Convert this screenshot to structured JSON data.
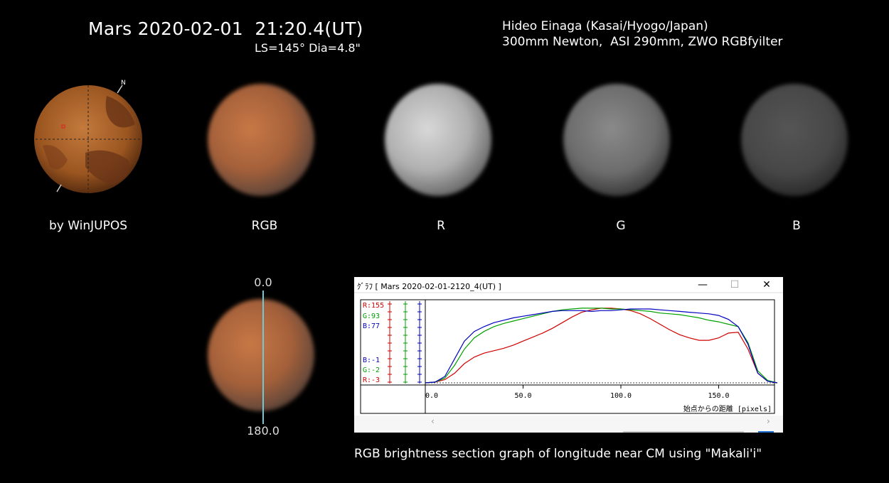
{
  "header": {
    "title": "Mars 2020-02-01  21:20.4(UT)",
    "subtitle": "LS=145° Dia=4.8\"",
    "observer": "Hideo Einaga (Kasai/Hyogo/Japan)",
    "equipment": "300mm Newton,  ASI 290mm, ZWO RGBfyilter"
  },
  "panels": [
    {
      "label": "by WinJUPOS",
      "north_marker": "N"
    },
    {
      "label": "RGB"
    },
    {
      "label": "R"
    },
    {
      "label": "G"
    },
    {
      "label": "B"
    }
  ],
  "section_marker": {
    "top": "0.0",
    "bottom": "180.0"
  },
  "graph_window": {
    "title": "ｸﾞﾗﾌ [ Mars 2020-02-01-2120_4(UT) ]",
    "buttons": {
      "minimize": "—",
      "maximize": "☐",
      "close": "✕"
    },
    "legend_top": [
      {
        "text": "R:155",
        "color": "#d00000"
      },
      {
        "text": "G:93",
        "color": "#00a000"
      },
      {
        "text": "B:77",
        "color": "#0000c0"
      }
    ],
    "legend_bottom": [
      {
        "text": "B:-1",
        "color": "#0000c0"
      },
      {
        "text": "G:-2",
        "color": "#00a000"
      },
      {
        "text": "R:-3",
        "color": "#d00000"
      }
    ],
    "x_axis_label": "始点からの距離 [pixels]",
    "scroll_left": "‹",
    "scroll_right": "›"
  },
  "chart_data": {
    "type": "line",
    "xlabel": "始点からの距離 [pixels]",
    "xlim": [
      0,
      180
    ],
    "x_ticks": [
      "0.0",
      "50.0",
      "100.0",
      "150.0"
    ],
    "x_tick_values": [
      0,
      50,
      100,
      150
    ],
    "series": [
      {
        "name": "R",
        "color": "#d00000",
        "x": [
          0,
          5,
          10,
          15,
          20,
          25,
          30,
          35,
          40,
          45,
          50,
          55,
          60,
          65,
          70,
          75,
          80,
          85,
          90,
          95,
          100,
          105,
          110,
          115,
          120,
          125,
          130,
          135,
          140,
          145,
          150,
          155,
          160,
          165,
          170,
          175,
          180
        ],
        "y": [
          0,
          1,
          4,
          12,
          24,
          32,
          37,
          40,
          43,
          47,
          52,
          57,
          62,
          68,
          75,
          82,
          88,
          91,
          93,
          93,
          92,
          90,
          86,
          80,
          73,
          66,
          60,
          56,
          53,
          53,
          56,
          62,
          63,
          42,
          12,
          2,
          0
        ]
      },
      {
        "name": "G",
        "color": "#00a000",
        "x": [
          0,
          5,
          10,
          15,
          20,
          25,
          30,
          35,
          40,
          45,
          50,
          55,
          60,
          65,
          70,
          75,
          80,
          85,
          90,
          95,
          100,
          105,
          110,
          115,
          120,
          125,
          130,
          135,
          140,
          145,
          150,
          155,
          160,
          165,
          170,
          175,
          180
        ],
        "y": [
          0,
          1,
          6,
          22,
          42,
          56,
          64,
          70,
          74,
          77,
          80,
          83,
          86,
          89,
          91,
          92,
          93,
          93,
          93,
          92,
          92,
          91,
          90,
          89,
          87,
          86,
          85,
          83,
          81,
          78,
          76,
          73,
          70,
          50,
          15,
          3,
          0
        ]
      },
      {
        "name": "B",
        "color": "#0000c0",
        "x": [
          0,
          5,
          10,
          15,
          20,
          25,
          30,
          35,
          40,
          45,
          50,
          55,
          60,
          65,
          70,
          75,
          80,
          85,
          90,
          95,
          100,
          105,
          110,
          115,
          120,
          125,
          130,
          135,
          140,
          145,
          150,
          155,
          160,
          165,
          170,
          175,
          180
        ],
        "y": [
          0,
          1,
          8,
          30,
          52,
          64,
          70,
          75,
          78,
          81,
          83,
          85,
          87,
          89,
          90,
          90,
          90,
          89,
          90,
          90,
          91,
          92,
          92,
          92,
          91,
          90,
          89,
          88,
          87,
          86,
          84,
          79,
          70,
          48,
          12,
          2,
          0
        ]
      }
    ]
  }
}
